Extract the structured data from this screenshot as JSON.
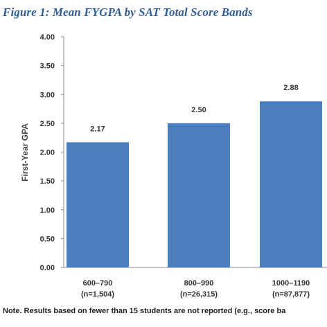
{
  "figure": {
    "title": "Figure 1: Mean FYGPA by SAT Total Score Bands",
    "note": "Note. Results based on fewer than 15 students are not reported (e.g., score ba"
  },
  "colors": {
    "bar": "#4a7ebf",
    "title": "#2f5d96",
    "axis": "#888888"
  },
  "chart_data": {
    "type": "bar",
    "title": "Figure 1: Mean FYGPA by SAT Total Score Bands",
    "xlabel": "",
    "ylabel": "First-Year GPA",
    "ylim": [
      0,
      4
    ],
    "yticks": [
      "0.00",
      "0.50",
      "1.00",
      "1.50",
      "2.00",
      "2.50",
      "3.00",
      "3.50",
      "4.00"
    ],
    "grid": false,
    "categories": [
      {
        "band": "600–790",
        "n": "(n=1,504)"
      },
      {
        "band": "800–990",
        "n": "(n=26,315)"
      },
      {
        "band": "1000–1190",
        "n": "(n=87,877)"
      }
    ],
    "values": [
      2.17,
      2.5,
      2.88
    ],
    "value_labels": [
      "2.17",
      "2.50",
      "2.88"
    ]
  }
}
